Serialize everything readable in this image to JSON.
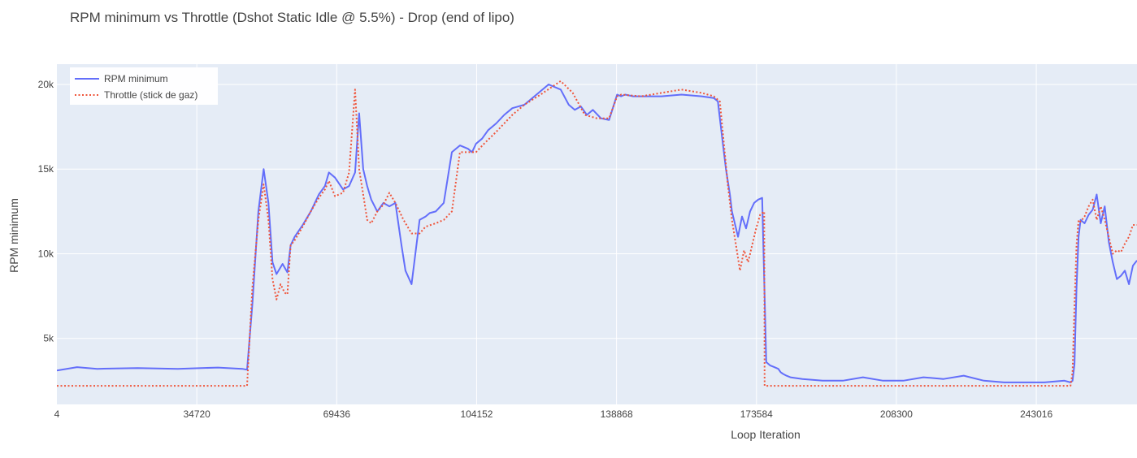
{
  "chart_data": {
    "type": "line",
    "title": "RPM minimum vs Throttle (Dshot Static Idle @ 5.5%) - Drop (end of lipo)",
    "xlabel": "Loop Iteration",
    "ylabel": "RPM minimum",
    "xlim": [
      4,
      268000
    ],
    "ylim": [
      1100,
      21200
    ],
    "x_ticks": [
      4,
      34720,
      69436,
      104152,
      138868,
      173584,
      208300,
      243016
    ],
    "x_tick_labels": [
      "4",
      "34720",
      "69436",
      "104152",
      "138868",
      "173584",
      "208300",
      "243016"
    ],
    "y_ticks": [
      5000,
      10000,
      15000,
      20000
    ],
    "y_tick_labels": [
      "5k",
      "10k",
      "15k",
      "20k"
    ],
    "grid": true,
    "legend": "top-left",
    "series": [
      {
        "name": "RPM minimum",
        "color": "#636efa",
        "dash": "solid",
        "x": [
          4,
          5000,
          10000,
          20000,
          30000,
          40000,
          46000,
          47200,
          48500,
          50000,
          51300,
          52500,
          53500,
          54500,
          56000,
          57200,
          58000,
          59000,
          61000,
          63000,
          65000,
          66500,
          67500,
          69000,
          71000,
          72500,
          74000,
          75000,
          76000,
          77000,
          78000,
          79500,
          81000,
          82500,
          84000,
          85500,
          86500,
          88000,
          90000,
          91500,
          92500,
          94000,
          96000,
          98000,
          100000,
          102000,
          103000,
          104000,
          105500,
          107000,
          109000,
          111000,
          113000,
          116000,
          119000,
          122000,
          125000,
          127000,
          128500,
          130000,
          131500,
          133000,
          135000,
          137000,
          139000,
          140000,
          141000,
          143000,
          145000,
          150000,
          155000,
          160000,
          163000,
          164000,
          165000,
          166000,
          167000,
          167500,
          168000,
          169000,
          170000,
          171000,
          172000,
          173000,
          174000,
          175000,
          176000,
          177000,
          178000,
          179000,
          179600,
          180200,
          181000,
          182000,
          185000,
          190000,
          195000,
          200000,
          205000,
          210000,
          215000,
          220000,
          225000,
          230000,
          235000,
          240000,
          245000,
          250000,
          251500,
          252000,
          252500,
          253000,
          253500,
          254000,
          255000,
          256000,
          257000,
          258000,
          259000,
          260000,
          261000,
          262000,
          263000,
          264000,
          265000,
          266000,
          267000,
          268000
        ],
        "y": [
          3100,
          3300,
          3200,
          3250,
          3200,
          3280,
          3200,
          3150,
          7000,
          12500,
          15000,
          13000,
          9500,
          8800,
          9400,
          8900,
          10500,
          11000,
          11700,
          12500,
          13500,
          14000,
          14800,
          14500,
          13800,
          14000,
          14800,
          18300,
          15000,
          14000,
          13200,
          12500,
          13000,
          12800,
          13000,
          10500,
          9000,
          8200,
          12000,
          12200,
          12400,
          12500,
          13000,
          16000,
          16400,
          16200,
          16000,
          16500,
          16800,
          17300,
          17700,
          18200,
          18600,
          18800,
          19400,
          20000,
          19700,
          18800,
          18500,
          18700,
          18200,
          18500,
          18000,
          17900,
          19400,
          19300,
          19400,
          19300,
          19300,
          19300,
          19400,
          19300,
          19200,
          19000,
          17000,
          15000,
          13500,
          12500,
          12000,
          11000,
          12200,
          11500,
          12500,
          13000,
          13200,
          13300,
          3600,
          3400,
          3300,
          3200,
          3000,
          2900,
          2800,
          2700,
          2600,
          2500,
          2500,
          2700,
          2500,
          2500,
          2700,
          2600,
          2800,
          2500,
          2400,
          2400,
          2400,
          2500,
          2400,
          2500,
          3500,
          8000,
          11000,
          12000,
          11800,
          12300,
          12600,
          13500,
          11800,
          12800,
          10700,
          9500,
          8500,
          8700,
          9000,
          8200,
          9300,
          9600
        ]
      },
      {
        "name": "Throttle (stick de gaz)",
        "color": "#ef553b",
        "dash": "dot",
        "x": [
          4,
          40000,
          46000,
          47200,
          48500,
          50000,
          51300,
          52500,
          53500,
          54500,
          55500,
          56500,
          57200,
          58000,
          59000,
          61000,
          63000,
          65000,
          66500,
          67500,
          69000,
          71000,
          72500,
          74000,
          75000,
          76000,
          77000,
          78000,
          79500,
          81000,
          82500,
          84000,
          86000,
          88000,
          90000,
          91500,
          94000,
          96000,
          98000,
          100000,
          102000,
          104000,
          106000,
          109000,
          113000,
          116000,
          120000,
          125000,
          128000,
          131000,
          134000,
          137000,
          139000,
          140000,
          145000,
          150000,
          155000,
          160000,
          163000,
          164500,
          165500,
          166500,
          167500,
          168500,
          169500,
          170500,
          171500,
          172500,
          173500,
          174500,
          175500,
          175600,
          180000,
          200000,
          220000,
          240000,
          250000,
          251500,
          252000,
          252500,
          253000,
          253500,
          254000,
          255000,
          256000,
          257000,
          258000,
          259000,
          260000,
          261000,
          262000,
          263000,
          264000,
          265000,
          266000,
          267000,
          268000
        ],
        "y": [
          2200,
          2200,
          2200,
          2200,
          8000,
          12000,
          14100,
          12000,
          8500,
          7300,
          8200,
          7700,
          7600,
          10500,
          10800,
          11600,
          12500,
          13300,
          13800,
          14300,
          13400,
          13600,
          14800,
          19700,
          15000,
          13500,
          12000,
          11800,
          12500,
          12900,
          13600,
          13000,
          12000,
          11200,
          11200,
          11600,
          11800,
          12000,
          12500,
          16000,
          16000,
          16000,
          16500,
          17200,
          18200,
          18800,
          19400,
          20200,
          19500,
          18200,
          18000,
          18000,
          19300,
          19400,
          19300,
          19500,
          19700,
          19500,
          19300,
          19000,
          16500,
          14000,
          12000,
          10500,
          9000,
          10200,
          9500,
          10500,
          11500,
          12300,
          12500,
          2200,
          2200,
          2200,
          2200,
          2200,
          2200,
          2200,
          3000,
          7000,
          10500,
          12000,
          11900,
          12200,
          12800,
          13200,
          12000,
          12800,
          12000,
          11000,
          10000,
          10200,
          10100,
          10600,
          11000,
          11700,
          11700
        ]
      }
    ]
  }
}
